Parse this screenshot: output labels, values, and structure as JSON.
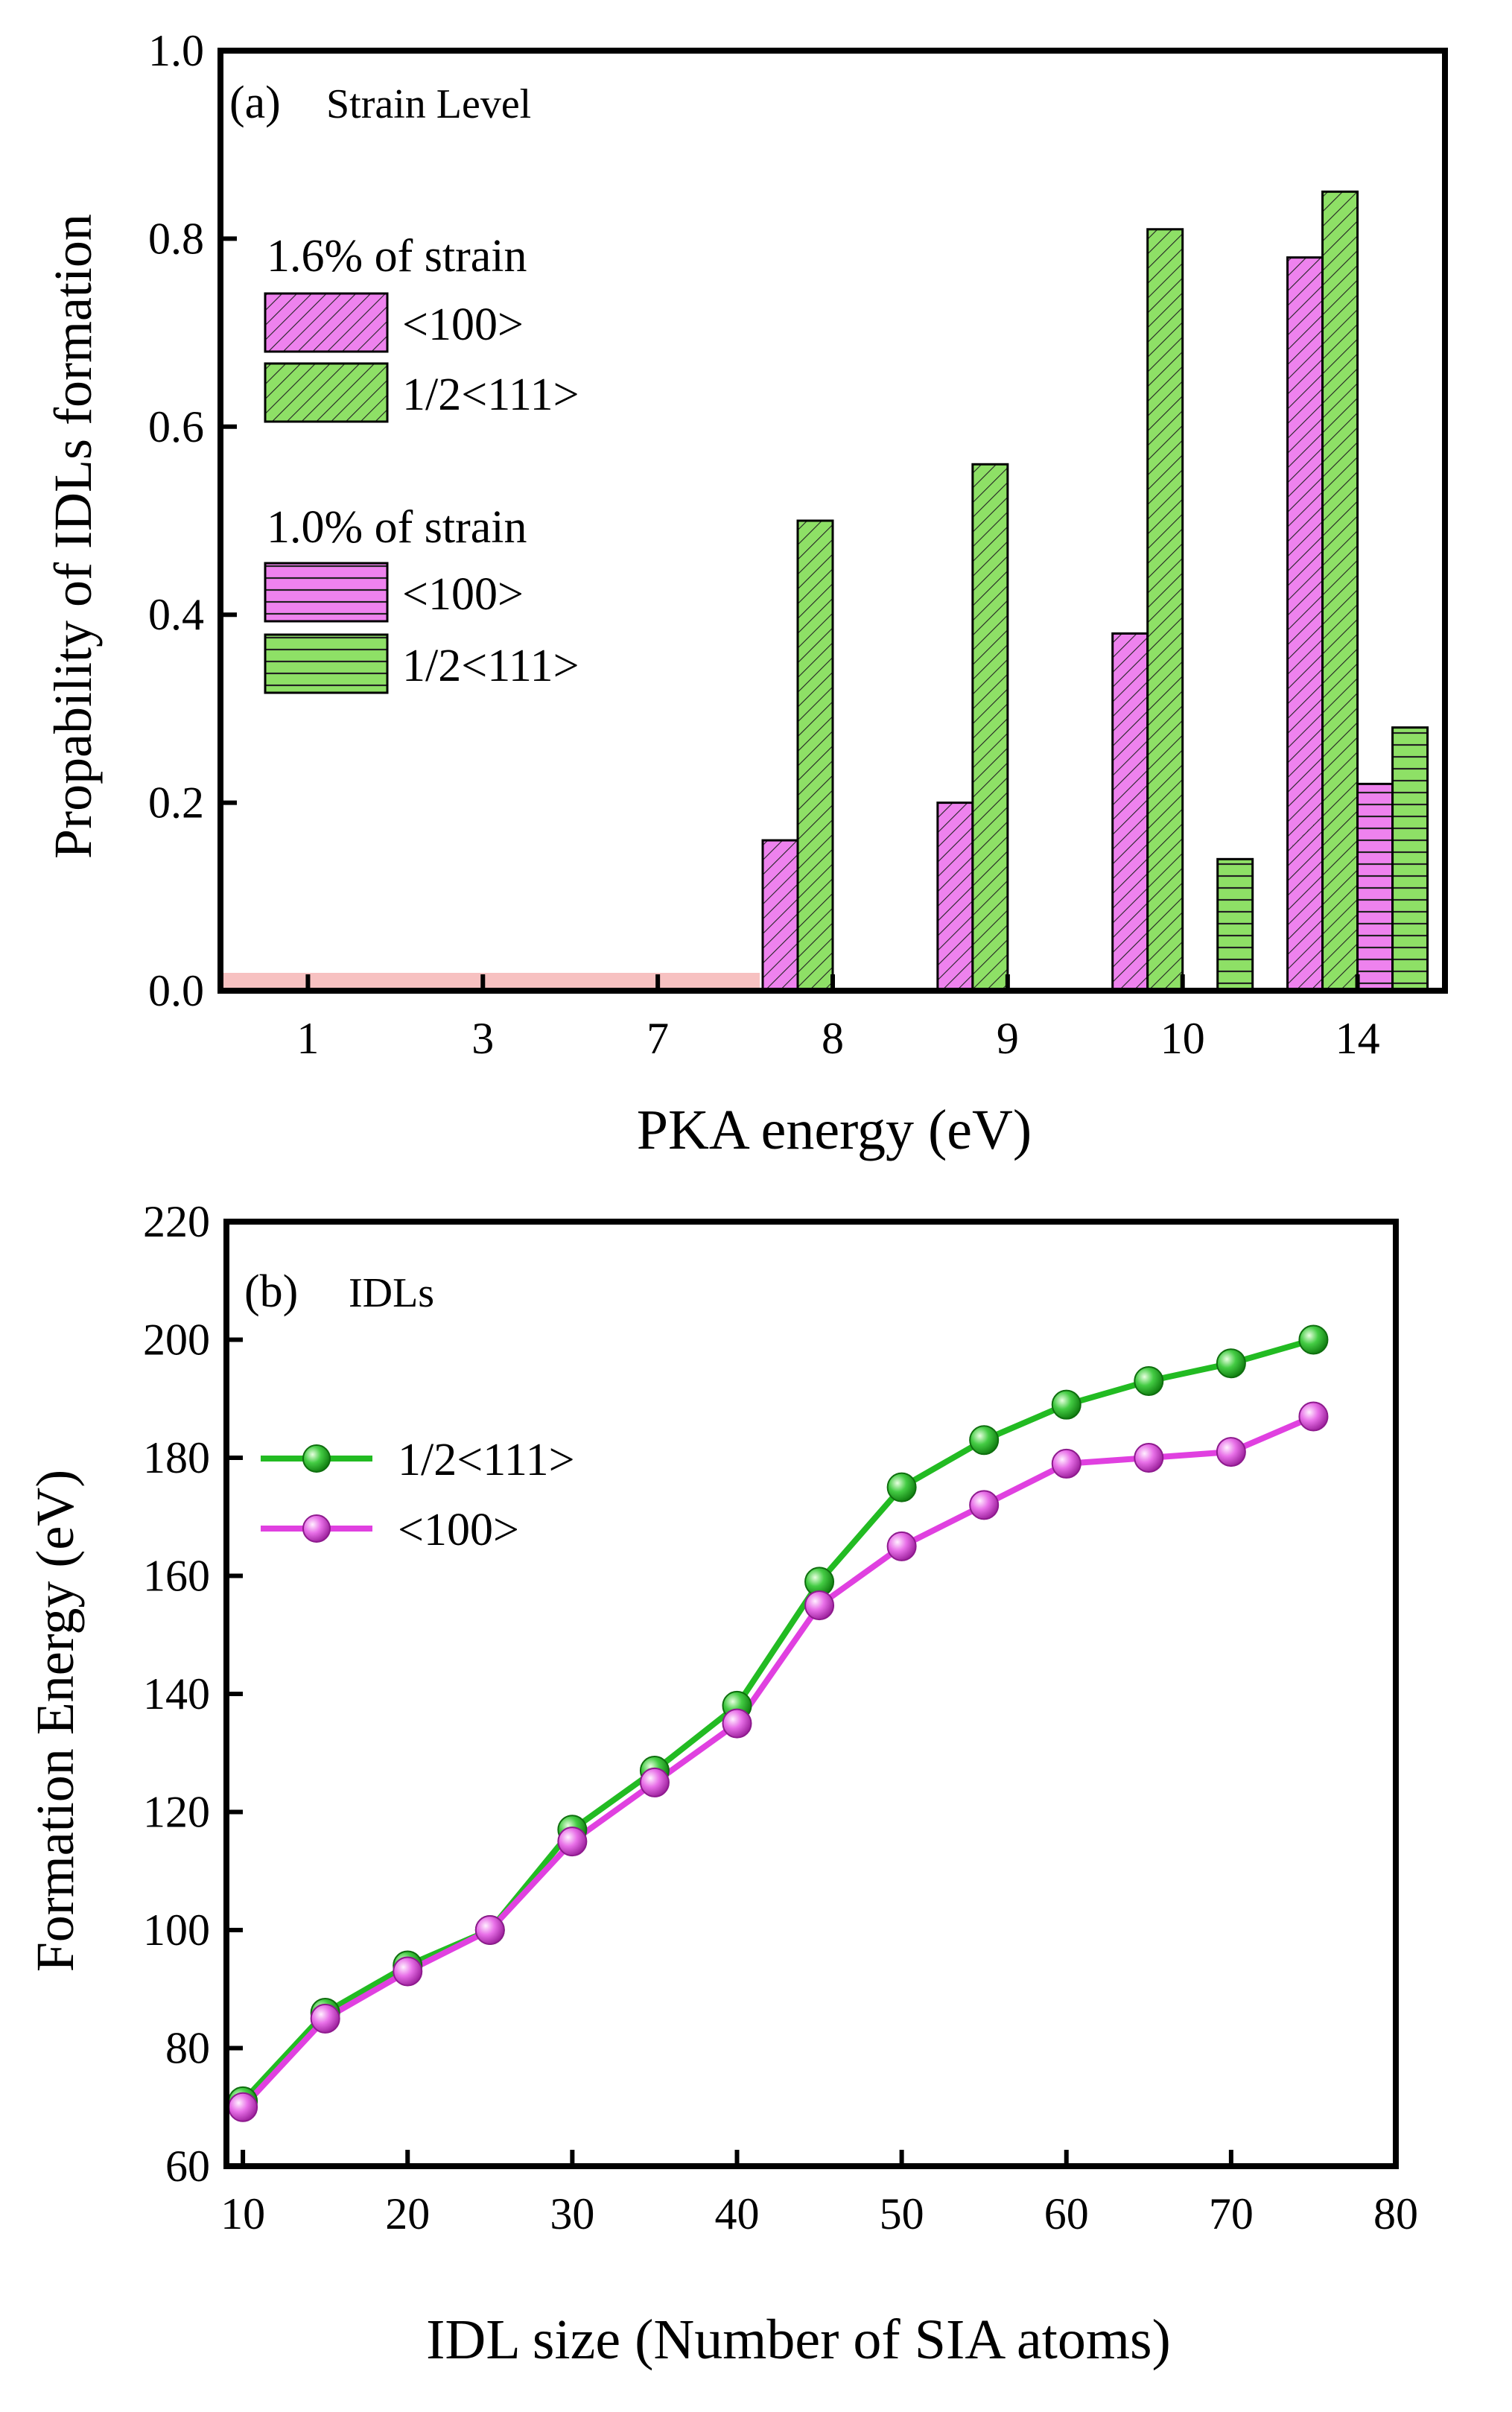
{
  "colors": {
    "pink": "#EE82EE",
    "green": "#8EE066",
    "green_line": "#22BB22",
    "pink_line": "#E040E0",
    "baseline_band": "#F4A6A6",
    "frame": "#000000"
  },
  "chart_data": [
    {
      "type": "bar",
      "panel_label": "(a)",
      "title": "Strain Level",
      "xlabel": "PKA energy (eV)",
      "ylabel": "Propability of IDLs formation",
      "categories": [
        "1",
        "3",
        "7",
        "8",
        "9",
        "10",
        "14"
      ],
      "ylim": [
        0.0,
        1.0
      ],
      "yticks": [
        "0.0",
        "0.2",
        "0.4",
        "0.6",
        "0.8",
        "1.0"
      ],
      "legend_groups": [
        {
          "heading": "1.6% of strain",
          "entries": [
            "<100>",
            "1/2<111>"
          ]
        },
        {
          "heading": "1.0% of strain",
          "entries": [
            "<100>",
            "1/2<111>"
          ]
        }
      ],
      "series": [
        {
          "name": "<100> 1.6% of strain",
          "color": "#EE82EE",
          "pattern": "hatch",
          "values": [
            0,
            0,
            0,
            0.16,
            0.2,
            0.38,
            0.78
          ]
        },
        {
          "name": "1/2<111> 1.6% of strain",
          "color": "#8EE066",
          "pattern": "hatch",
          "values": [
            0,
            0,
            0,
            0.5,
            0.56,
            0.81,
            0.85
          ]
        },
        {
          "name": "<100> 1.0% of strain",
          "color": "#EE82EE",
          "pattern": "horizontal",
          "values": [
            0,
            0,
            0,
            0,
            0,
            0,
            0.22
          ]
        },
        {
          "name": "1/2<111> 1.0% of strain",
          "color": "#8EE066",
          "pattern": "horizontal",
          "values": [
            0,
            0,
            0,
            0,
            0,
            0.14,
            0.28
          ]
        }
      ]
    },
    {
      "type": "line",
      "panel_label": "(b)",
      "title": "IDLs",
      "xlabel": "IDL size (Number of SIA atoms)",
      "ylabel": "Formation Energy (eV)",
      "xlim": [
        9,
        80
      ],
      "ylim": [
        60,
        220
      ],
      "xticks": [
        "10",
        "20",
        "30",
        "40",
        "50",
        "60",
        "70",
        "80"
      ],
      "yticks": [
        "60",
        "80",
        "100",
        "120",
        "140",
        "160",
        "180",
        "200",
        "220"
      ],
      "x": [
        10,
        15,
        20,
        25,
        30,
        35,
        40,
        45,
        50,
        55,
        60,
        65,
        70,
        75
      ],
      "series": [
        {
          "name": "1/2<111>",
          "color": "#22BB22",
          "values": [
            71,
            86,
            94,
            100,
            117,
            127,
            138,
            159,
            175,
            183,
            189,
            193,
            196,
            200
          ]
        },
        {
          "name": "<100>",
          "color": "#E040E0",
          "values": [
            70,
            85,
            93,
            100,
            115,
            125,
            135,
            155,
            165,
            172,
            179,
            180,
            181,
            187
          ]
        }
      ]
    }
  ]
}
